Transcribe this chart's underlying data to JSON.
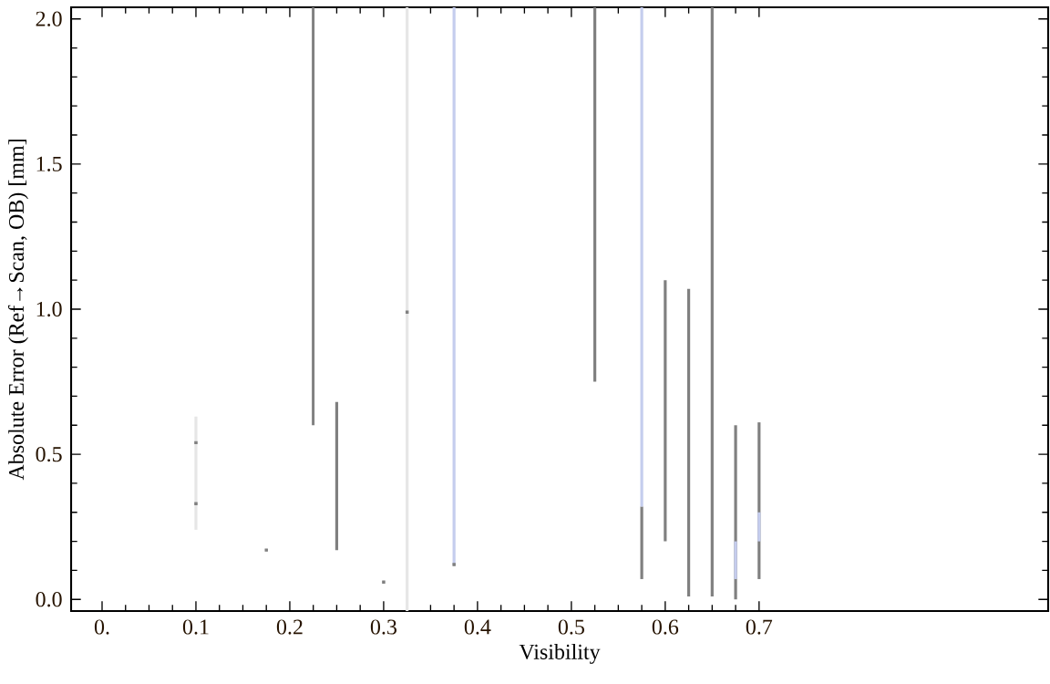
{
  "chart_data": {
    "type": "bar",
    "xlabel": "Visibility",
    "ylabel": "Absolute Error (Ref→Scan, OB) [mm]",
    "xlim": [
      -0.033,
      1.008
    ],
    "ylim": [
      -0.04,
      2.04
    ],
    "xticks": [
      {
        "value": 0,
        "label": "0."
      },
      0.1,
      0.2,
      0.3,
      0.4,
      0.5,
      0.6,
      0.7
    ],
    "yticks": [
      {
        "value": 0,
        "label": "0.0"
      },
      0.5,
      {
        "value": 1,
        "label": "1.0"
      },
      1.5,
      {
        "value": 2,
        "label": "2.0"
      }
    ],
    "grid": false,
    "series": [
      {
        "color": "#e6e6e6",
        "x": [
          0.1,
          0.325
        ],
        "base": [
          0.24,
          -0.04
        ],
        "values": [
          0.39,
          2.08
        ]
      },
      {
        "color": "#808080",
        "x": [
          0.225,
          0.25,
          0.525,
          0.575,
          0.6,
          0.625,
          0.65,
          0.675,
          0.7
        ],
        "base": [
          0.6,
          0.17,
          0.75,
          0.07,
          0.2,
          0.01,
          0.01,
          0.0,
          0.07
        ],
        "values": [
          1.44,
          0.51,
          1.29,
          0.25,
          0.9,
          1.06,
          2.03,
          0.6,
          0.54
        ]
      },
      {
        "color": "#c5cdee",
        "x": [
          0.375,
          0.575,
          0.675,
          0.7
        ],
        "base": [
          0.12,
          0.32,
          0.07,
          0.2
        ],
        "values": [
          1.92,
          1.72,
          0.13,
          0.1
        ]
      },
      {
        "type": "scatter",
        "marker": "square",
        "color": "#808080",
        "x": [
          0.1,
          0.1,
          0.175,
          0.3,
          0.325,
          0.375
        ],
        "values": [
          0.54,
          0.33,
          0.17,
          0.06,
          0.99,
          0.12
        ]
      }
    ]
  }
}
